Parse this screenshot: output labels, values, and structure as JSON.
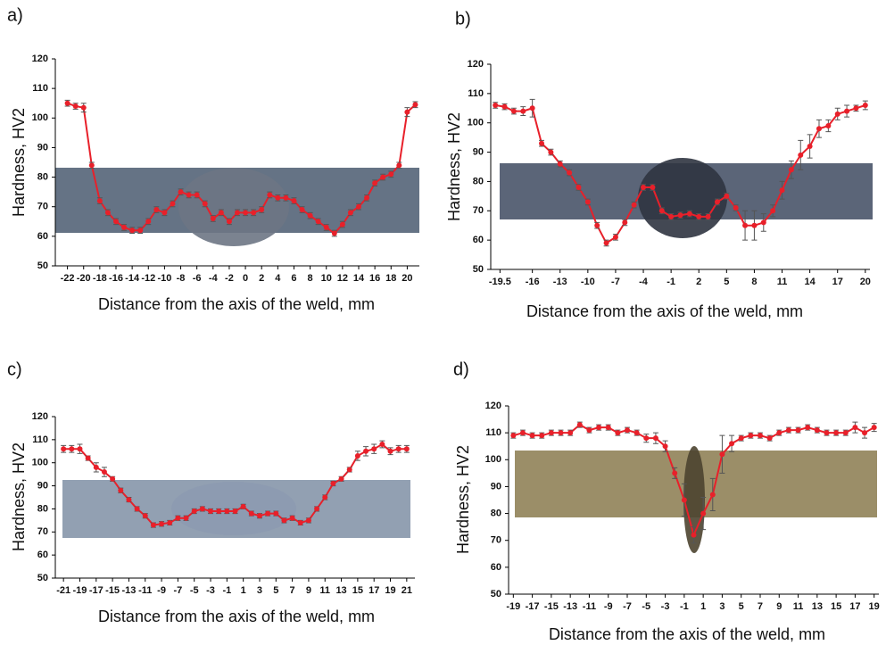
{
  "chart_data": [
    {
      "type": "line",
      "label": "a)",
      "ylabel": "Hardness, HV2",
      "xlabel": "Distance from the axis of the weld, mm",
      "color": "#e8202a",
      "xlim": [
        -23.5,
        21.5
      ],
      "ylim": [
        50,
        120
      ],
      "yticks": [
        50,
        60,
        70,
        80,
        90,
        100,
        110,
        120
      ],
      "xticks": [
        -22,
        -20,
        -18,
        -16,
        -14,
        -12,
        -10,
        -8,
        -6,
        -4,
        -2,
        0,
        2,
        4,
        6,
        8,
        10,
        12,
        14,
        16,
        18,
        20
      ],
      "x": [
        -22,
        -21,
        -20,
        -19,
        -18,
        -17,
        -16,
        -15,
        -14,
        -13,
        -12,
        -11,
        -10,
        -9,
        -8,
        -7,
        -6,
        -5,
        -4,
        -3,
        -2,
        -1,
        0,
        1,
        2,
        3,
        4,
        5,
        6,
        7,
        8,
        9,
        10,
        11,
        12,
        13,
        14,
        15,
        16,
        17,
        18,
        19,
        20,
        21
      ],
      "values": [
        105,
        104,
        103.5,
        84,
        72,
        68,
        65,
        63,
        62,
        62,
        65,
        69,
        68,
        71,
        75,
        74,
        74,
        71,
        66,
        68,
        65,
        68,
        68,
        68,
        69,
        74,
        73,
        73,
        72,
        69,
        67,
        65,
        63,
        61,
        64,
        68,
        70,
        73,
        78,
        80,
        81,
        84,
        102,
        104.5
      ],
      "errors": [
        1,
        1,
        1.5,
        1,
        1,
        1,
        1,
        1,
        1,
        1,
        1,
        1,
        1,
        1,
        1,
        1,
        1,
        1,
        1,
        1,
        1,
        1,
        1,
        1,
        1,
        1,
        1,
        1,
        1,
        1,
        1,
        1,
        1,
        1,
        1,
        1,
        1,
        1,
        1,
        1,
        1,
        1,
        1.5,
        1
      ]
    },
    {
      "type": "line",
      "label": "b)",
      "ylabel": "Hardness, HV2",
      "xlabel": "Distance from the axis of the weld, mm",
      "color": "#e8202a",
      "xlim": [
        -20.5,
        20.5
      ],
      "ylim": [
        50,
        120
      ],
      "yticks": [
        50,
        60,
        70,
        80,
        90,
        100,
        110,
        120
      ],
      "xticks": [
        -19.5,
        -16,
        -13,
        -10,
        -7,
        -4,
        -1,
        2,
        5,
        8,
        11,
        14,
        17,
        20
      ],
      "x": [
        -20,
        -19,
        -18,
        -17,
        -16,
        -15,
        -14,
        -13,
        -12,
        -11,
        -10,
        -9,
        -8,
        -7,
        -6,
        -5,
        -4,
        -3,
        -2,
        -1,
        0,
        1,
        2,
        3,
        4,
        5,
        6,
        7,
        8,
        9,
        10,
        11,
        12,
        13,
        14,
        15,
        16,
        17,
        18,
        19,
        20
      ],
      "values": [
        106,
        105.5,
        104,
        104,
        105,
        93,
        90,
        86,
        83,
        78,
        73,
        65,
        59,
        61,
        66,
        72,
        78,
        78,
        70,
        68,
        68.5,
        69,
        68,
        68,
        73,
        75,
        71,
        65,
        65,
        66,
        70,
        77,
        84,
        89,
        92,
        98,
        99,
        103,
        104,
        105,
        106
      ],
      "errors": [
        1,
        1,
        1,
        1.5,
        3,
        1,
        1,
        1,
        1,
        1,
        1,
        1,
        1,
        1,
        1,
        1,
        1,
        1,
        1,
        1,
        1,
        1,
        1,
        1,
        1,
        1,
        1,
        5,
        5,
        3,
        2,
        3,
        3,
        5,
        4,
        3,
        2,
        2,
        2,
        1,
        1.5
      ]
    },
    {
      "type": "line",
      "label": "c)",
      "ylabel": "Hardness, HV2",
      "xlabel": "Distance from the axis of the weld, mm",
      "color": "#e8202a",
      "xlim": [
        -22,
        22
      ],
      "ylim": [
        50,
        120
      ],
      "yticks": [
        50,
        60,
        70,
        80,
        90,
        100,
        110,
        120
      ],
      "xticks": [
        -21,
        -19,
        -17,
        -15,
        -13,
        -11,
        -9,
        -7,
        -5,
        -3,
        -1,
        1,
        3,
        5,
        7,
        9,
        11,
        13,
        15,
        17,
        19,
        21
      ],
      "x": [
        -21,
        -20,
        -19,
        -18,
        -17,
        -16,
        -15,
        -14,
        -13,
        -12,
        -11,
        -10,
        -9,
        -8,
        -7,
        -6,
        -5,
        -4,
        -3,
        -2,
        -1,
        0,
        1,
        2,
        3,
        4,
        5,
        6,
        7,
        8,
        9,
        10,
        11,
        12,
        13,
        14,
        15,
        16,
        17,
        18,
        19,
        20,
        21
      ],
      "values": [
        106,
        106,
        106,
        102,
        98,
        96,
        93,
        88,
        84,
        80,
        77,
        73,
        73.5,
        74,
        76,
        76,
        79,
        80,
        79,
        79,
        79,
        79,
        81,
        78,
        77,
        78,
        78,
        75,
        76,
        74,
        75,
        80,
        85,
        91,
        93,
        97,
        103,
        105,
        106,
        108,
        105,
        106,
        106
      ],
      "errors": [
        1.5,
        1.5,
        2,
        1,
        2,
        2,
        1,
        1,
        1,
        1,
        1,
        1,
        1,
        1,
        1,
        1,
        1,
        1,
        1,
        1,
        1,
        1,
        1,
        1,
        1,
        1,
        1,
        1,
        1,
        1,
        1,
        1,
        1,
        1,
        1,
        1,
        2,
        2,
        2,
        1.5,
        1.5,
        1.5,
        1.5
      ]
    },
    {
      "type": "line",
      "label": "d)",
      "ylabel": "Hardness, HV2",
      "xlabel": "Distance from the axis of the weld, mm",
      "color": "#e8202a",
      "xlim": [
        -19.5,
        19.5
      ],
      "ylim": [
        50,
        120
      ],
      "yticks": [
        50,
        60,
        70,
        80,
        90,
        100,
        110,
        120
      ],
      "xticks": [
        -19,
        -17,
        -15,
        -13,
        -11,
        -9,
        -7,
        -5,
        -3,
        -1,
        1,
        3,
        5,
        7,
        9,
        11,
        13,
        15,
        17,
        19
      ],
      "x": [
        -19,
        -18,
        -17,
        -16,
        -15,
        -14,
        -13,
        -12,
        -11,
        -10,
        -9,
        -8,
        -7,
        -6,
        -5,
        -4,
        -3,
        -2,
        -1,
        0,
        1,
        2,
        3,
        4,
        5,
        6,
        7,
        8,
        9,
        10,
        11,
        12,
        13,
        14,
        15,
        16,
        17,
        18,
        19
      ],
      "values": [
        109,
        110,
        109,
        109,
        110,
        110,
        110,
        113,
        111,
        112,
        112,
        110,
        111,
        110,
        108,
        108,
        105,
        95,
        85,
        72,
        80,
        87,
        102,
        106,
        108,
        109,
        109,
        108,
        110,
        111,
        111,
        112,
        111,
        110,
        110,
        110,
        112,
        110,
        112
      ],
      "errors": [
        1,
        1,
        1,
        1,
        1,
        1,
        1,
        1,
        1,
        1,
        1,
        1,
        1,
        1,
        1.5,
        2,
        2,
        2,
        6,
        3,
        6,
        6,
        7,
        3,
        1,
        1,
        1,
        1,
        1,
        1,
        1,
        1,
        1,
        1,
        1,
        1,
        2,
        2,
        1.5
      ]
    }
  ]
}
